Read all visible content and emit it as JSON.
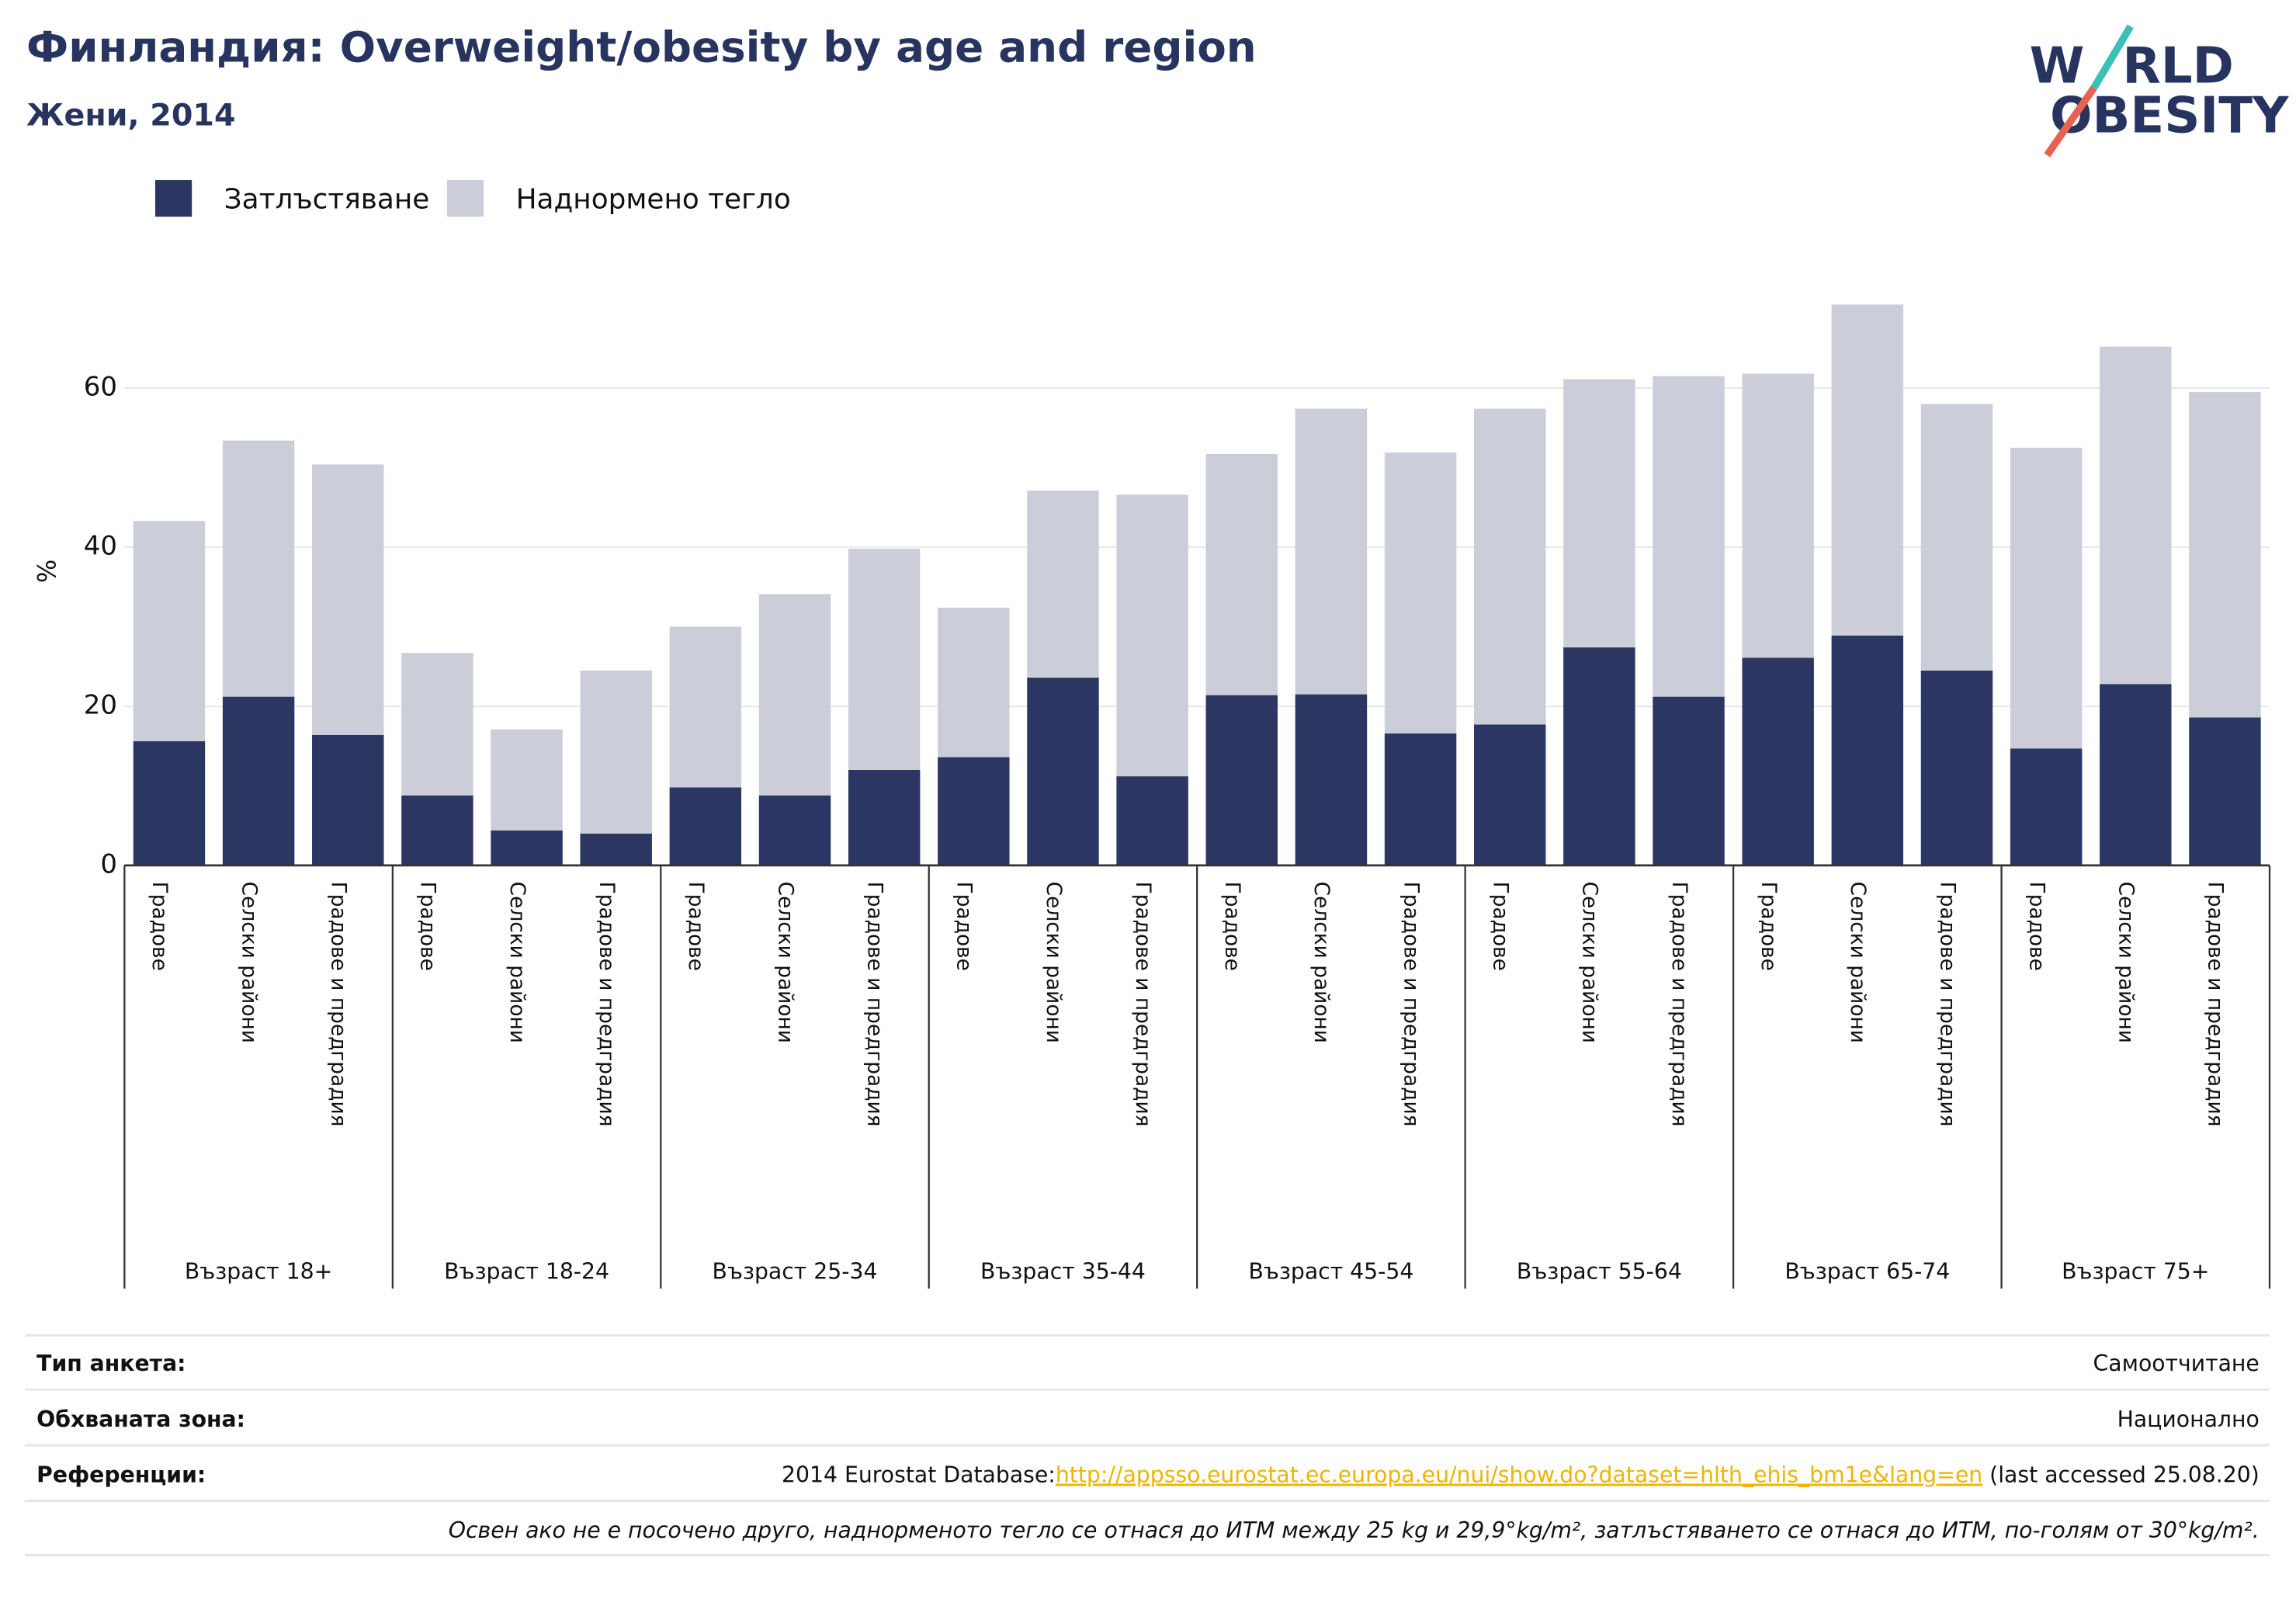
{
  "header": {
    "title": "Финландия: Overweight/obesity by age and region",
    "subtitle": "Жени, 2014",
    "logo": [
      "W",
      "RLD",
      "OBESITY"
    ]
  },
  "chart_data": {
    "type": "stacked_bar",
    "y_label": "%",
    "groups": [
      "Възраст 18+",
      "Възраст 18-24",
      "Възраст 25-34",
      "Възраст 35-44",
      "Възраст 45-54",
      "Възраст 55-64",
      "Възраст 65-74",
      "Възраст 75+"
    ],
    "categories": [
      "Градове",
      "Селски райони",
      "Градове и предградия",
      "Градове",
      "Селски райони",
      "Градове и предградия",
      "Градове",
      "Селски райони",
      "Градове и предградия",
      "Градове",
      "Селски райони",
      "Градове и предградия",
      "Градове",
      "Селски райони",
      "Градове и предградия",
      "Градове",
      "Селски райони",
      "Градове и предградия",
      "Градове",
      "Селски райони",
      "Градове и предградия",
      "Градове",
      "Селски райони",
      "Градове и предградия"
    ],
    "series": [
      {
        "name": "Затлъстяване",
        "color": "#2b3663",
        "values": [
          15.6,
          21.2,
          16.4,
          8.8,
          4.4,
          4.0,
          9.8,
          8.8,
          12.0,
          13.6,
          23.6,
          11.2,
          21.4,
          21.5,
          16.6,
          17.7,
          27.4,
          21.2,
          26.1,
          28.9,
          24.5,
          14.7,
          22.8,
          18.6
        ]
      },
      {
        "name": "Наднормено тегло",
        "color": "#cbcdd9",
        "values": [
          27.7,
          32.2,
          34.0,
          17.9,
          12.7,
          20.5,
          20.2,
          25.3,
          27.8,
          18.8,
          23.5,
          35.4,
          30.3,
          35.9,
          35.3,
          39.7,
          33.7,
          40.3,
          35.7,
          41.6,
          33.5,
          37.8,
          42.4,
          40.9
        ]
      }
    ],
    "ylim": [
      0,
      75
    ],
    "yticks": [
      0,
      20,
      40,
      60
    ],
    "grid": true
  },
  "footer": {
    "rows": [
      [
        "Тип анкета:",
        "Самоотчитане"
      ],
      [
        "Обхваната зона:",
        "Национално"
      ]
    ],
    "reference": {
      "label": "Референции:",
      "prefix": "2014 Eurostat Database:",
      "link": "http://appsso.eurostat.ec.europa.eu/nui/show.do?dataset=hlth_ehis_bm1e&lang=en",
      "suffix": " (last accessed 25.08.20)"
    },
    "note": "Освен ако не е посочено друго, наднорменото тегло се отнася до ИТМ между 25 kg и 29,9°kg/m², затлъстяването се отнася до ИТМ, по-голям от 30°kg/m²."
  }
}
